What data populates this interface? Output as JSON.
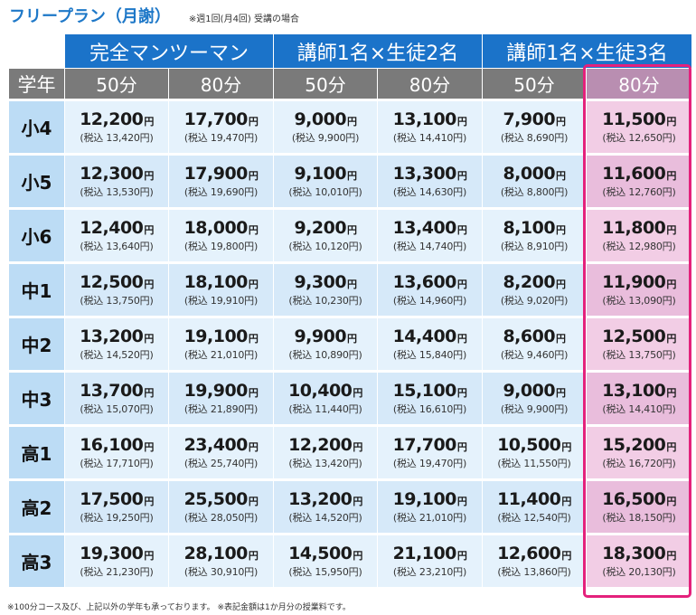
{
  "header": {
    "title": "フリープラン（月謝）",
    "note": "※週1回(月4回) 受講の場合"
  },
  "table": {
    "groups": [
      "完全マンツーマン",
      "講師1名×生徒2名",
      "講師1名×生徒3名"
    ],
    "grade_header": "学年",
    "durations": [
      "50分",
      "80分",
      "50分",
      "80分",
      "50分",
      "80分"
    ],
    "yen_unit": "円",
    "rows": [
      {
        "grade": "小4",
        "cells": [
          {
            "price": "12,200",
            "tax": "(税込 13,420円)"
          },
          {
            "price": "17,700",
            "tax": "(税込 19,470円)"
          },
          {
            "price": "9,000",
            "tax": "(税込 9,900円)"
          },
          {
            "price": "13,100",
            "tax": "(税込 14,410円)"
          },
          {
            "price": "7,900",
            "tax": "(税込 8,690円)"
          },
          {
            "price": "11,500",
            "tax": "(税込 12,650円)"
          }
        ]
      },
      {
        "grade": "小5",
        "cells": [
          {
            "price": "12,300",
            "tax": "(税込 13,530円)"
          },
          {
            "price": "17,900",
            "tax": "(税込 19,690円)"
          },
          {
            "price": "9,100",
            "tax": "(税込 10,010円)"
          },
          {
            "price": "13,300",
            "tax": "(税込 14,630円)"
          },
          {
            "price": "8,000",
            "tax": "(税込 8,800円)"
          },
          {
            "price": "11,600",
            "tax": "(税込 12,760円)"
          }
        ]
      },
      {
        "grade": "小6",
        "cells": [
          {
            "price": "12,400",
            "tax": "(税込 13,640円)"
          },
          {
            "price": "18,000",
            "tax": "(税込 19,800円)"
          },
          {
            "price": "9,200",
            "tax": "(税込 10,120円)"
          },
          {
            "price": "13,400",
            "tax": "(税込 14,740円)"
          },
          {
            "price": "8,100",
            "tax": "(税込 8,910円)"
          },
          {
            "price": "11,800",
            "tax": "(税込 12,980円)"
          }
        ]
      },
      {
        "grade": "中1",
        "cells": [
          {
            "price": "12,500",
            "tax": "(税込 13,750円)"
          },
          {
            "price": "18,100",
            "tax": "(税込 19,910円)"
          },
          {
            "price": "9,300",
            "tax": "(税込 10,230円)"
          },
          {
            "price": "13,600",
            "tax": "(税込 14,960円)"
          },
          {
            "price": "8,200",
            "tax": "(税込 9,020円)"
          },
          {
            "price": "11,900",
            "tax": "(税込 13,090円)"
          }
        ]
      },
      {
        "grade": "中2",
        "cells": [
          {
            "price": "13,200",
            "tax": "(税込 14,520円)"
          },
          {
            "price": "19,100",
            "tax": "(税込 21,010円)"
          },
          {
            "price": "9,900",
            "tax": "(税込 10,890円)"
          },
          {
            "price": "14,400",
            "tax": "(税込 15,840円)"
          },
          {
            "price": "8,600",
            "tax": "(税込 9,460円)"
          },
          {
            "price": "12,500",
            "tax": "(税込 13,750円)"
          }
        ]
      },
      {
        "grade": "中3",
        "cells": [
          {
            "price": "13,700",
            "tax": "(税込 15,070円)"
          },
          {
            "price": "19,900",
            "tax": "(税込 21,890円)"
          },
          {
            "price": "10,400",
            "tax": "(税込 11,440円)"
          },
          {
            "price": "15,100",
            "tax": "(税込 16,610円)"
          },
          {
            "price": "9,000",
            "tax": "(税込 9,900円)"
          },
          {
            "price": "13,100",
            "tax": "(税込 14,410円)"
          }
        ]
      },
      {
        "grade": "高1",
        "cells": [
          {
            "price": "16,100",
            "tax": "(税込 17,710円)"
          },
          {
            "price": "23,400",
            "tax": "(税込 25,740円)"
          },
          {
            "price": "12,200",
            "tax": "(税込 13,420円)"
          },
          {
            "price": "17,700",
            "tax": "(税込 19,470円)"
          },
          {
            "price": "10,500",
            "tax": "(税込 11,550円)"
          },
          {
            "price": "15,200",
            "tax": "(税込 16,720円)"
          }
        ]
      },
      {
        "grade": "高2",
        "cells": [
          {
            "price": "17,500",
            "tax": "(税込 19,250円)"
          },
          {
            "price": "25,500",
            "tax": "(税込 28,050円)"
          },
          {
            "price": "13,200",
            "tax": "(税込 14,520円)"
          },
          {
            "price": "19,100",
            "tax": "(税込 21,010円)"
          },
          {
            "price": "11,400",
            "tax": "(税込 12,540円)"
          },
          {
            "price": "16,500",
            "tax": "(税込 18,150円)"
          }
        ]
      },
      {
        "grade": "高3",
        "cells": [
          {
            "price": "19,300",
            "tax": "(税込 21,230円)"
          },
          {
            "price": "28,100",
            "tax": "(税込 30,910円)"
          },
          {
            "price": "14,500",
            "tax": "(税込 15,950円)"
          },
          {
            "price": "21,100",
            "tax": "(税込 23,210円)"
          },
          {
            "price": "12,600",
            "tax": "(税込 13,860円)"
          },
          {
            "price": "18,300",
            "tax": "(税込 20,130円)"
          }
        ]
      }
    ]
  },
  "footer": {
    "note": "※100分コース及び、上記以外の学年も承っております。 ※表記金額は1か月分の授業料です。"
  },
  "colors": {
    "title_blue": "#1e78c8",
    "group_header_blue": "#1b73c9",
    "duration_header_gray": "#7a7a7a",
    "highlight_border": "#e4217c",
    "highlight_fill": "#f2cde5"
  }
}
